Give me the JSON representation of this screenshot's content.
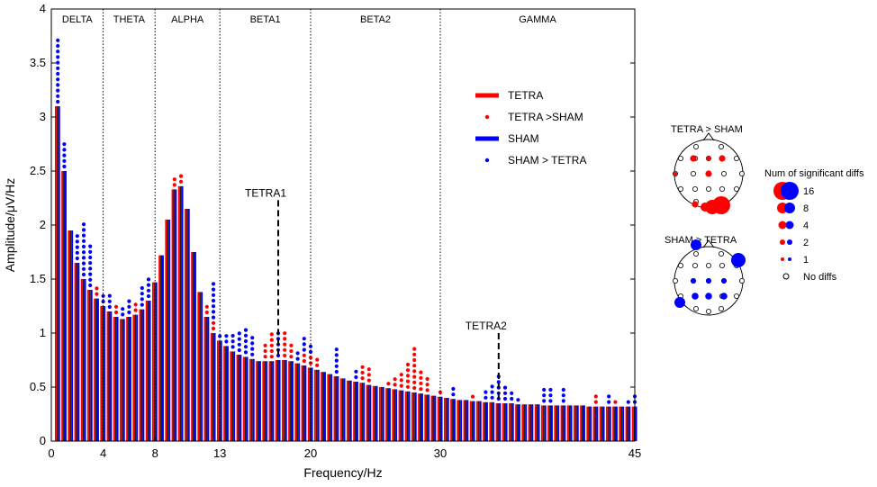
{
  "chart_data": {
    "type": "bar",
    "xlabel": "Frequency/Hz",
    "ylabel": "Amplitude/μV/Hz",
    "xlim": [
      0,
      45
    ],
    "ylim": [
      0,
      4
    ],
    "xticks": [
      0,
      4,
      8,
      13,
      20,
      30,
      45
    ],
    "yticks": [
      0,
      0.5,
      1,
      1.5,
      2,
      2.5,
      3,
      3.5,
      4
    ],
    "bands": [
      {
        "name": "DELTA",
        "from": 0,
        "to": 4
      },
      {
        "name": "THETA",
        "from": 4,
        "to": 8
      },
      {
        "name": "ALPHA",
        "from": 8,
        "to": 13
      },
      {
        "name": "BETA1",
        "from": 13,
        "to": 20
      },
      {
        "name": "BETA2",
        "from": 20,
        "to": 30
      },
      {
        "name": "GAMMA",
        "from": 30,
        "to": 45
      }
    ],
    "series": [
      {
        "name": "TETRA",
        "color": "#ff0000"
      },
      {
        "name": "SHAM",
        "color": "#0000ff"
      }
    ],
    "legend": [
      {
        "label": "TETRA",
        "kind": "line",
        "color": "#ff0000"
      },
      {
        "label": "TETRA >SHAM",
        "kind": "dot",
        "color": "#ff0000"
      },
      {
        "label": "SHAM",
        "kind": "line",
        "color": "#0000ff"
      },
      {
        "label": "SHAM > TETRA",
        "kind": "dot",
        "color": "#0000ff"
      }
    ],
    "legend_position": "top-right",
    "x": [
      0.5,
      1,
      1.5,
      2,
      2.5,
      3,
      3.5,
      4,
      4.5,
      5,
      5.5,
      6,
      6.5,
      7,
      7.5,
      8,
      8.5,
      9,
      9.5,
      10,
      10.5,
      11,
      11.5,
      12,
      12.5,
      13,
      13.5,
      14,
      14.5,
      15,
      15.5,
      16,
      16.5,
      17,
      17.5,
      18,
      18.5,
      19,
      19.5,
      20,
      20.5,
      21,
      21.5,
      22,
      22.5,
      23,
      23.5,
      24,
      24.5,
      25,
      25.5,
      26,
      26.5,
      27,
      27.5,
      28,
      28.5,
      29,
      29.5,
      30,
      30.5,
      31,
      31.5,
      32,
      32.5,
      33,
      33.5,
      34,
      34.5,
      35,
      35.5,
      36,
      36.5,
      37,
      37.5,
      38,
      38.5,
      39,
      39.5,
      40,
      40.5,
      41,
      41.5,
      42,
      42.5,
      43,
      43.5,
      44,
      44.5,
      45
    ],
    "amplitude": [
      3.1,
      2.5,
      1.95,
      1.65,
      1.5,
      1.4,
      1.32,
      1.25,
      1.2,
      1.15,
      1.13,
      1.15,
      1.17,
      1.22,
      1.3,
      1.47,
      1.72,
      2.05,
      2.33,
      2.36,
      2.15,
      1.75,
      1.38,
      1.15,
      1.0,
      0.93,
      0.88,
      0.83,
      0.8,
      0.78,
      0.76,
      0.74,
      0.74,
      0.74,
      0.75,
      0.75,
      0.74,
      0.72,
      0.7,
      0.68,
      0.66,
      0.64,
      0.62,
      0.6,
      0.58,
      0.56,
      0.55,
      0.54,
      0.52,
      0.51,
      0.5,
      0.49,
      0.48,
      0.47,
      0.46,
      0.45,
      0.44,
      0.43,
      0.42,
      0.41,
      0.4,
      0.39,
      0.38,
      0.38,
      0.37,
      0.37,
      0.36,
      0.36,
      0.35,
      0.35,
      0.35,
      0.34,
      0.34,
      0.34,
      0.34,
      0.33,
      0.33,
      0.33,
      0.33,
      0.33,
      0.33,
      0.33,
      0.32,
      0.32,
      0.32,
      0.32,
      0.32,
      0.32,
      0.32,
      0.32
    ],
    "sig_dot_counts": {
      "tetra_gt_sham": [
        0,
        0,
        0,
        0,
        0,
        0,
        2,
        0,
        0,
        2,
        0,
        0,
        2,
        0,
        0,
        0,
        0,
        0,
        2,
        2,
        0,
        0,
        0,
        2,
        2,
        0,
        0,
        0,
        0,
        0,
        0,
        0,
        3,
        5,
        0,
        5,
        3,
        0,
        2,
        2,
        2,
        0,
        0,
        0,
        0,
        0,
        0,
        3,
        3,
        0,
        0,
        1,
        2,
        3,
        5,
        8,
        4,
        3,
        0,
        1,
        0,
        0,
        0,
        0,
        1,
        0,
        0,
        0,
        0,
        0,
        0,
        0,
        0,
        0,
        0,
        0,
        0,
        0,
        0,
        0,
        0,
        0,
        0,
        2,
        0,
        0,
        1,
        0,
        0,
        0
      ],
      "sham_gt_tetra": [
        12,
        5,
        0,
        5,
        10,
        8,
        0,
        2,
        3,
        0,
        2,
        3,
        0,
        4,
        4,
        0,
        0,
        0,
        0,
        0,
        0,
        0,
        0,
        0,
        7,
        1,
        2,
        3,
        4,
        5,
        4,
        0,
        0,
        0,
        5,
        0,
        0,
        2,
        3,
        2,
        0,
        0,
        0,
        5,
        0,
        0,
        2,
        0,
        0,
        0,
        0,
        0,
        0,
        0,
        0,
        0,
        0,
        0,
        0,
        0,
        0,
        2,
        0,
        0,
        0,
        0,
        2,
        3,
        5,
        3,
        2,
        1,
        0,
        0,
        0,
        3,
        3,
        0,
        3,
        0,
        0,
        0,
        0,
        0,
        0,
        2,
        0,
        0,
        1,
        2
      ]
    },
    "annotations": [
      {
        "label": "TETRA1",
        "x": 17.5,
        "y_top": 2.23
      },
      {
        "label": "TETRA2",
        "x": 34.5,
        "y_top": 1.0
      }
    ]
  },
  "head_maps": {
    "top_title": "TETRA > SHAM",
    "bottom_title": "SHAM > TETRA",
    "size_legend_title": "Num of significant diffs",
    "size_legend_items": [
      "16",
      "8",
      "4",
      "2",
      "1",
      "No diffs"
    ],
    "tetra_color": "#ff0000",
    "sham_color": "#0000ff"
  }
}
